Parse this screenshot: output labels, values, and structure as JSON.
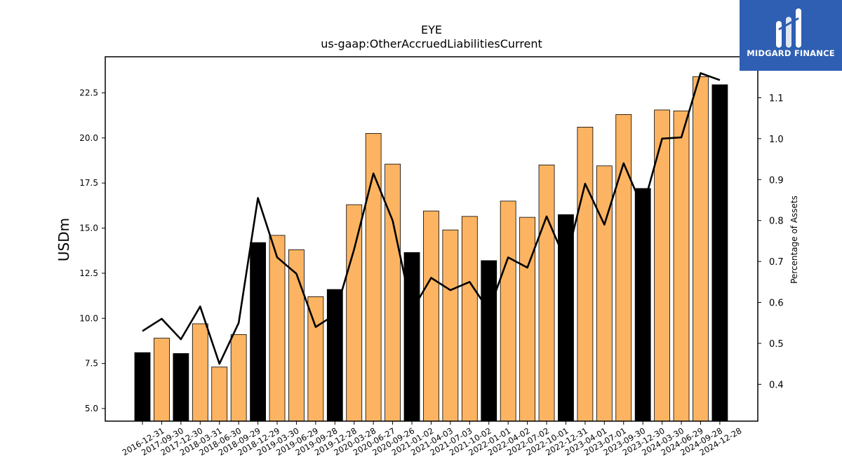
{
  "chart_data": {
    "type": "bar",
    "title": "EYE",
    "subtitle": "us-gaap:OtherAccruedLiabilitiesCurrent",
    "ylabel": "USDm",
    "y2label": "Percentage of Assets",
    "categories": [
      "2016-12-31",
      "2017-09-30",
      "2017-12-30",
      "2018-03-31",
      "2018-06-30",
      "2018-09-29",
      "2018-12-29",
      "2019-03-30",
      "2019-06-29",
      "2019-09-28",
      "2019-12-28",
      "2020-03-28",
      "2020-06-27",
      "2020-09-26",
      "2021-01-02",
      "2021-04-03",
      "2021-07-03",
      "2021-10-02",
      "2022-01-01",
      "2022-04-02",
      "2022-07-02",
      "2022-10-01",
      "2022-12-31",
      "2023-04-01",
      "2023-07-01",
      "2023-09-30",
      "2023-12-30",
      "2024-03-30",
      "2024-06-29",
      "2024-09-28",
      "2024-12-28"
    ],
    "series": [
      {
        "values": [
          8.1,
          8.9,
          8.05,
          9.7,
          7.3,
          9.1,
          14.2,
          14.6,
          13.8,
          11.2,
          11.6,
          16.3,
          20.25,
          18.55,
          13.65,
          15.95,
          14.9,
          15.65,
          13.2,
          16.5,
          15.6,
          18.5,
          15.75,
          20.6,
          18.45,
          21.3,
          17.2,
          21.55,
          21.5,
          23.4,
          22.95
        ],
        "highlight": [
          true,
          false,
          true,
          false,
          false,
          false,
          true,
          false,
          false,
          false,
          true,
          false,
          false,
          false,
          true,
          false,
          false,
          false,
          true,
          false,
          false,
          false,
          true,
          false,
          false,
          false,
          true,
          false,
          false,
          false,
          true
        ]
      },
      {
        "axis": "right",
        "type": "line",
        "values": [
          0.53,
          0.56,
          0.51,
          0.59,
          0.45,
          0.55,
          0.855,
          0.71,
          0.67,
          0.54,
          0.57,
          0.73,
          0.915,
          0.8,
          0.58,
          0.66,
          0.63,
          0.65,
          0.58,
          0.71,
          0.685,
          0.81,
          0.7,
          0.89,
          0.79,
          0.94,
          0.83,
          1.0,
          1.003,
          1.16,
          1.143
        ]
      }
    ],
    "ylim": [
      4.3,
      24.5
    ],
    "y2lim": [
      0.31,
      1.2
    ],
    "yticks": [
      "5.0",
      "7.5",
      "10.0",
      "12.5",
      "15.0",
      "17.5",
      "20.0",
      "22.5"
    ],
    "y2ticks": [
      "0.4",
      "0.5",
      "0.6",
      "0.7",
      "0.8",
      "0.9",
      "1.0",
      "1.1"
    ],
    "colors": {
      "bar": "#fdb462",
      "highlight_bar": "#000000",
      "line": "#000000"
    },
    "grid": false
  },
  "logo": {
    "text": "MIDGARD FINANCE",
    "color": "#2e5fb3"
  }
}
